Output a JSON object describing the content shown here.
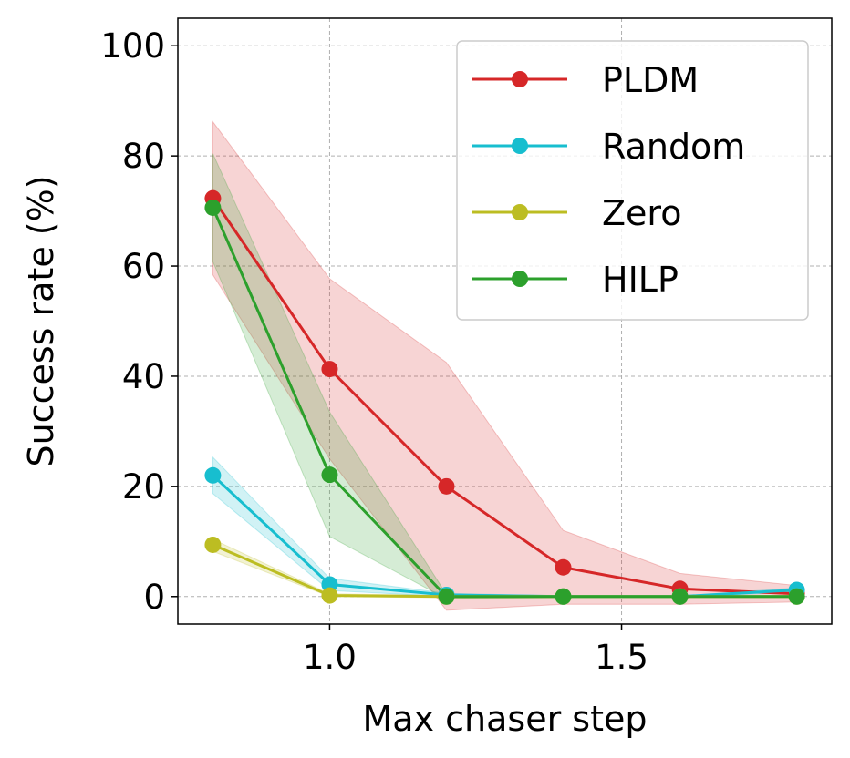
{
  "chart_data": {
    "type": "line",
    "xlabel": "Max chaser step",
    "ylabel": "Success rate (%)",
    "xlim": [
      0.74,
      1.86
    ],
    "ylim": [
      -5,
      105
    ],
    "x_ticks": [
      1.0,
      1.5
    ],
    "x_tick_labels": [
      "1.0",
      "1.5"
    ],
    "y_ticks": [
      0,
      20,
      40,
      60,
      80,
      100
    ],
    "y_tick_labels": [
      "0",
      "20",
      "40",
      "60",
      "80",
      "100"
    ],
    "grid": true,
    "legend_position": "top-right",
    "series": [
      {
        "name": "PLDM",
        "color": "#d62728",
        "x": [
          0.8,
          1.0,
          1.2,
          1.4,
          1.6,
          1.8
        ],
        "values": [
          72.3,
          41.3,
          20.0,
          5.3,
          1.4,
          0.5
        ],
        "upper": [
          86.2,
          57.7,
          42.5,
          12.0,
          4.2,
          2.0
        ],
        "lower": [
          58.4,
          25.0,
          -2.5,
          -1.4,
          -1.4,
          -1.0
        ]
      },
      {
        "name": "Random",
        "color": "#17becf",
        "x": [
          0.8,
          1.0,
          1.2,
          1.4,
          1.6,
          1.8
        ],
        "values": [
          22.0,
          2.2,
          0.3,
          0.0,
          0.0,
          1.2
        ],
        "upper": [
          25.3,
          3.3,
          0.6,
          0.1,
          0.1,
          1.6
        ],
        "lower": [
          18.7,
          1.1,
          0.0,
          -0.1,
          -0.1,
          0.8
        ]
      },
      {
        "name": "Zero",
        "color": "#bcbd22",
        "x": [
          0.8,
          1.0,
          1.2,
          1.4,
          1.6,
          1.8
        ],
        "values": [
          9.4,
          0.2,
          0.0,
          0.0,
          0.0,
          0.0
        ],
        "upper": [
          10.4,
          0.5,
          0.2,
          0.1,
          0.1,
          0.1
        ],
        "lower": [
          8.2,
          0.0,
          -0.2,
          -0.1,
          -0.1,
          -0.1
        ]
      },
      {
        "name": "HILP",
        "color": "#2ca02c",
        "x": [
          0.8,
          1.0,
          1.2,
          1.4,
          1.6,
          1.8
        ],
        "values": [
          70.6,
          22.1,
          0.0,
          0.0,
          0.0,
          0.0
        ],
        "upper": [
          80.4,
          33.5,
          0.4,
          0.2,
          0.2,
          0.2
        ],
        "lower": [
          60.8,
          10.9,
          -0.4,
          -0.2,
          -0.2,
          -0.2
        ]
      }
    ]
  }
}
